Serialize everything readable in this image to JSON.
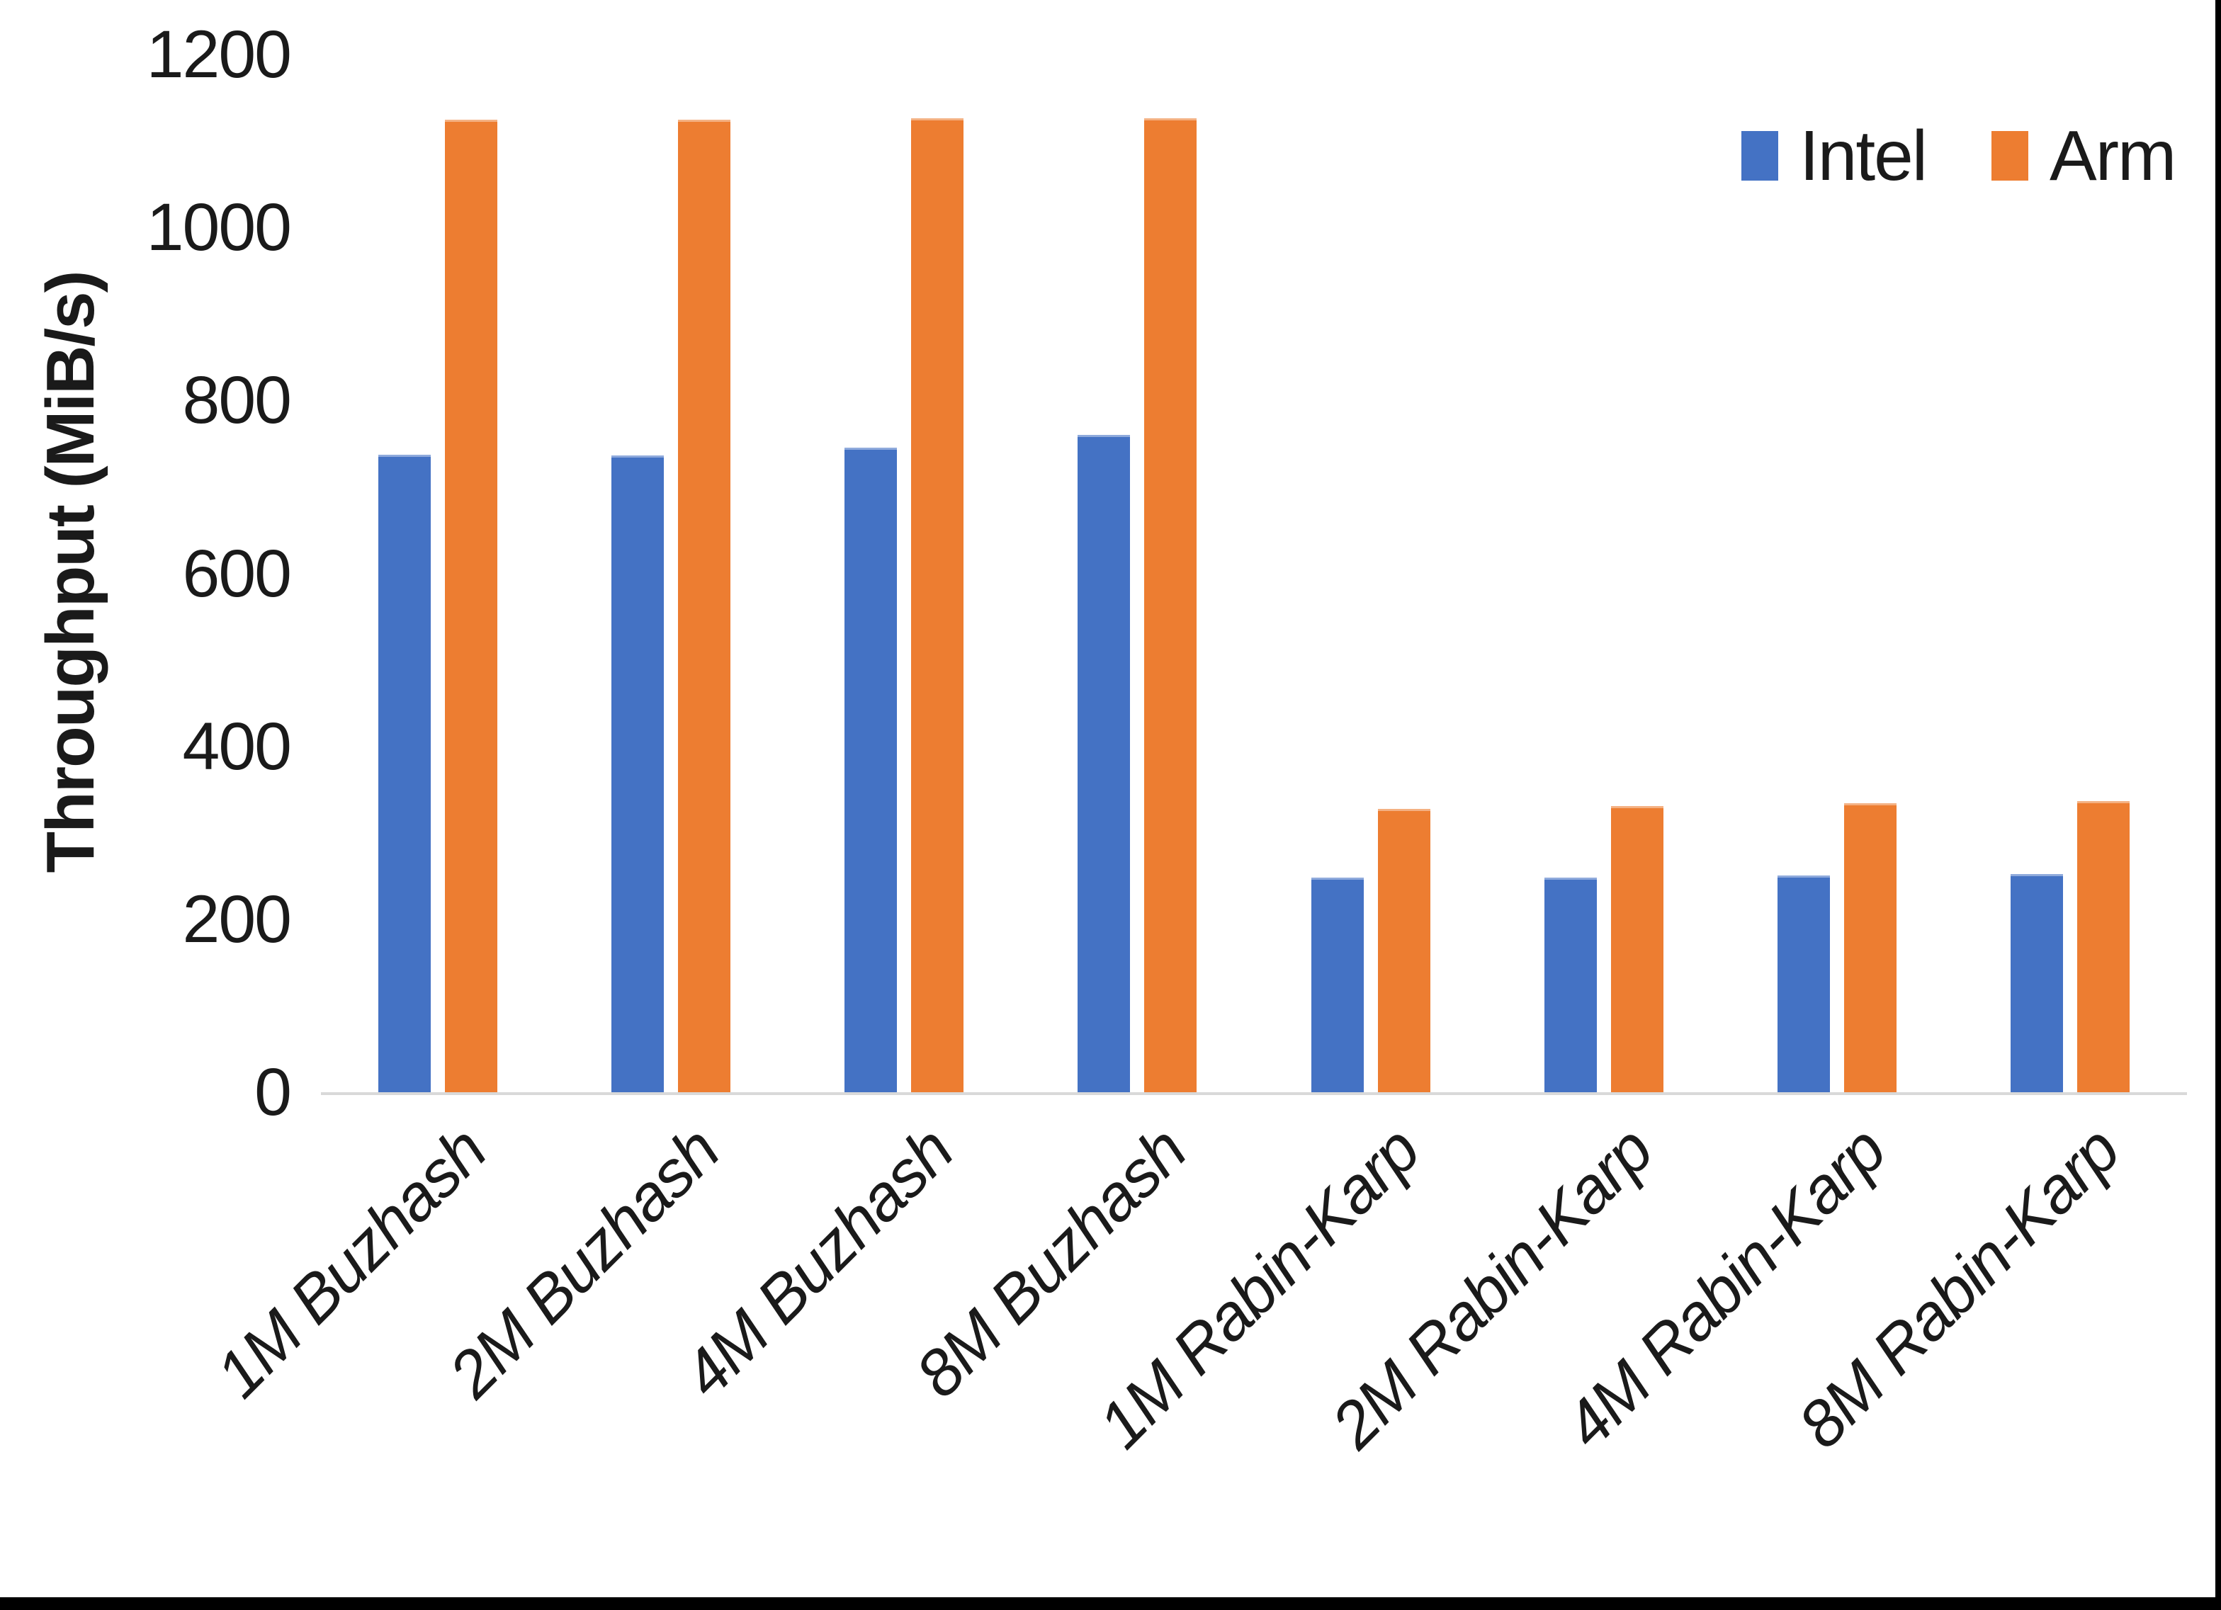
{
  "chart_data": {
    "type": "bar",
    "title": "",
    "ylabel": "Throughput (MiB/s)",
    "xlabel": "",
    "ylim": [
      0,
      1200
    ],
    "yticks": [
      0,
      200,
      400,
      600,
      800,
      1000,
      1200
    ],
    "grid": false,
    "legend_position": "top-right",
    "categories": [
      "1M Buzhash",
      "2M Buzhash",
      "4M Buzhash",
      "8M Buzhash",
      "1M Rabin-Karp",
      "2M Rabin-Karp",
      "4M Rabin-Karp",
      "8M Rabin-Karp"
    ],
    "series": [
      {
        "name": "Intel",
        "color": "#4472C4",
        "edge_color": "#8FAADC",
        "values": [
          737,
          736,
          745,
          760,
          248,
          248,
          251,
          252
        ]
      },
      {
        "name": "Arm",
        "color": "#ED7D31",
        "edge_color": "#F4B183",
        "values": [
          1125,
          1125,
          1126,
          1126,
          328,
          331,
          334,
          337
        ]
      }
    ],
    "axis_line_color": "#D9D9D9",
    "text_color": "#1a1a1a"
  }
}
